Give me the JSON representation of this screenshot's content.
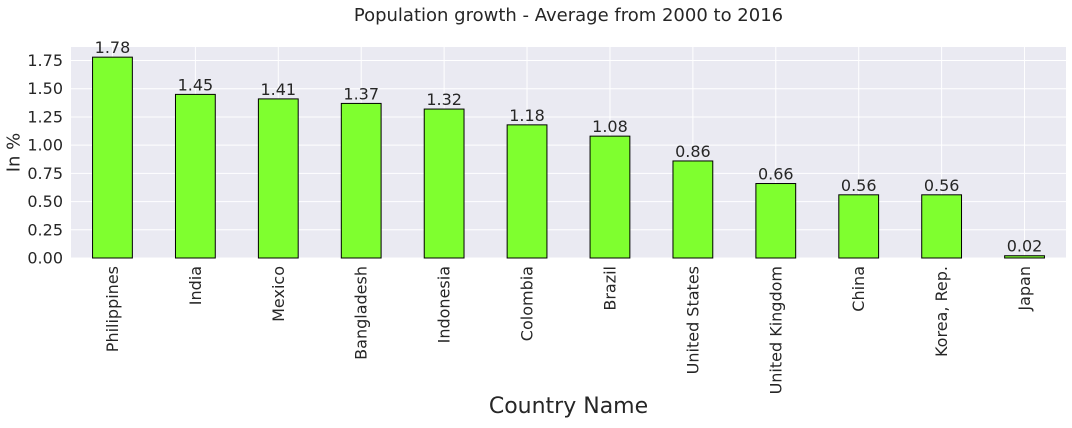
{
  "chart_data": {
    "type": "bar",
    "title": "Population growth - Average from 2000 to 2016",
    "xlabel": "Country Name",
    "ylabel": "In %",
    "categories": [
      "Philippines",
      "India",
      "Mexico",
      "Bangladesh",
      "Indonesia",
      "Colombia",
      "Brazil",
      "United States",
      "United Kingdom",
      "China",
      "Korea, Rep.",
      "Japan"
    ],
    "values": [
      1.78,
      1.45,
      1.41,
      1.37,
      1.32,
      1.18,
      1.08,
      0.86,
      0.66,
      0.56,
      0.56,
      0.02
    ],
    "value_labels": [
      "1.78",
      "1.45",
      "1.41",
      "1.37",
      "1.32",
      "1.18",
      "1.08",
      "0.86",
      "0.66",
      "0.56",
      "0.56",
      "0.02"
    ],
    "ylim": [
      0,
      1.87
    ],
    "yticks": [
      0.0,
      0.25,
      0.5,
      0.75,
      1.0,
      1.25,
      1.5,
      1.75
    ],
    "ytick_labels": [
      "0.00",
      "0.25",
      "0.50",
      "0.75",
      "1.00",
      "1.25",
      "1.50",
      "1.75"
    ],
    "grid": true,
    "colors": {
      "bar_fill": "#7FFF2F",
      "bar_edge": "#000000",
      "plot_background": "#EAEAF2",
      "grid": "#FFFFFF"
    }
  }
}
